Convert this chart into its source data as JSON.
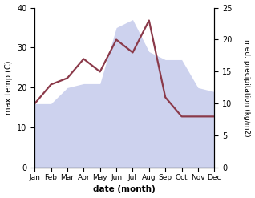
{
  "months": [
    "Jan",
    "Feb",
    "Mar",
    "Apr",
    "May",
    "Jun",
    "Jul",
    "Aug",
    "Sep",
    "Oct",
    "Nov",
    "Dec"
  ],
  "max_temp": [
    16,
    16,
    20,
    21,
    21,
    35,
    37,
    29,
    27,
    27,
    20,
    19
  ],
  "med_precip": [
    10,
    13,
    14,
    17,
    15,
    20,
    18,
    23,
    11,
    8,
    8,
    8
  ],
  "temp_fill_color": "#b8bfe8",
  "precip_color": "#8b3a4a",
  "left_ylabel": "max temp (C)",
  "right_ylabel": "med. precipitation (kg/m2)",
  "xlabel": "date (month)",
  "ylim_left": [
    0,
    40
  ],
  "ylim_right": [
    0,
    25
  ],
  "yticks_left": [
    0,
    10,
    20,
    30,
    40
  ],
  "yticks_right": [
    0,
    5,
    10,
    15,
    20,
    25
  ],
  "bg_color": "#ffffff"
}
